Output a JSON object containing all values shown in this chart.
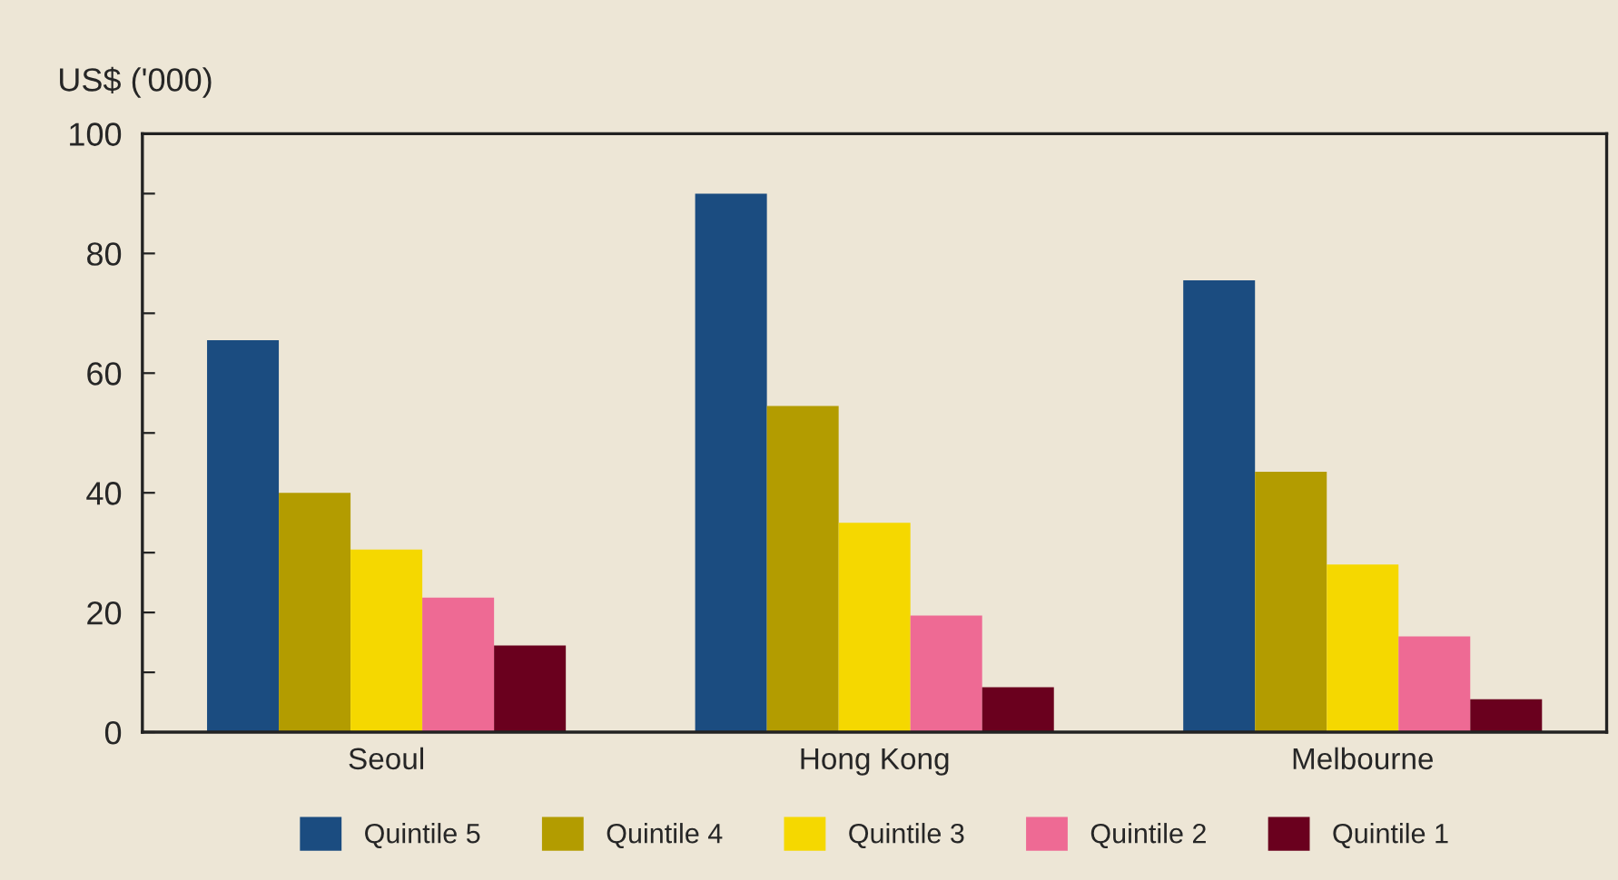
{
  "chart_data": {
    "type": "bar",
    "ylabel": "US$ ('000)",
    "categories": [
      "Seoul",
      "Hong Kong",
      "Melbourne"
    ],
    "series": [
      {
        "name": "Quintile 5",
        "color": "#1b4c80",
        "values": [
          65.5,
          90,
          75.5
        ]
      },
      {
        "name": "Quintile 4",
        "color": "#b39c00",
        "values": [
          40,
          54.5,
          43.5
        ]
      },
      {
        "name": "Quintile 3",
        "color": "#f5d800",
        "values": [
          30.5,
          35,
          28
        ]
      },
      {
        "name": "Quintile 2",
        "color": "#ee6a94",
        "values": [
          22.5,
          19.5,
          16
        ]
      },
      {
        "name": "Quintile 1",
        "color": "#6a001e",
        "values": [
          14.5,
          7.5,
          5.5
        ]
      }
    ],
    "ylim": [
      0,
      100
    ],
    "yticks": [
      0,
      {
        "value": 10,
        "label": null
      },
      20,
      {
        "value": 30,
        "label": null
      },
      40,
      {
        "value": 50,
        "label": null
      },
      60,
      {
        "value": 70,
        "label": null
      },
      80,
      {
        "value": 90,
        "label": null
      },
      100
    ],
    "grid": false,
    "legend": "bottom"
  }
}
